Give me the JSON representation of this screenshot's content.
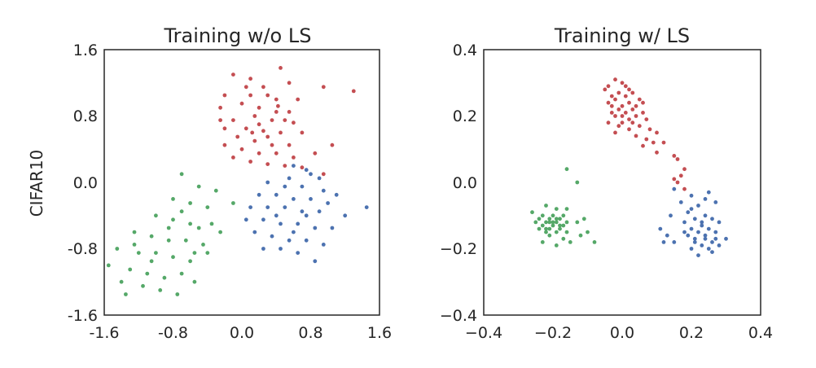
{
  "row_label": "CIFAR10",
  "colors": {
    "red": "#c44e52",
    "blue": "#4c72b0",
    "green": "#55a868",
    "axis": "#262626"
  },
  "chart_data": [
    {
      "type": "scatter",
      "title": "Training w/o LS",
      "xlabel": "",
      "ylabel": "CIFAR10",
      "xlim": [
        -1.6,
        1.6
      ],
      "ylim": [
        -1.6,
        1.6
      ],
      "xticks": [
        "-1.6",
        "-0.8",
        "0.0",
        "0.8",
        "1.6"
      ],
      "yticks": [
        "-1.6",
        "-0.8",
        "0.0",
        "0.8",
        "1.6"
      ],
      "grid": false,
      "series": [
        {
          "color": "#c44e52",
          "points": [
            [
              -0.1,
              1.3
            ],
            [
              0.1,
              1.25
            ],
            [
              0.45,
              1.38
            ],
            [
              0.55,
              1.2
            ],
            [
              0.95,
              1.15
            ],
            [
              1.3,
              1.1
            ],
            [
              -0.2,
              1.05
            ],
            [
              0.1,
              1.05
            ],
            [
              0.3,
              1.05
            ],
            [
              0.65,
              1.0
            ],
            [
              -0.25,
              0.9
            ],
            [
              0.0,
              0.95
            ],
            [
              0.2,
              0.9
            ],
            [
              0.4,
              0.85
            ],
            [
              0.55,
              0.85
            ],
            [
              -0.1,
              0.75
            ],
            [
              0.15,
              0.8
            ],
            [
              0.35,
              0.75
            ],
            [
              0.6,
              0.72
            ],
            [
              -0.2,
              0.65
            ],
            [
              0.05,
              0.65
            ],
            [
              0.25,
              0.62
            ],
            [
              0.45,
              0.6
            ],
            [
              0.7,
              0.6
            ],
            [
              -0.05,
              0.55
            ],
            [
              0.15,
              0.5
            ],
            [
              0.35,
              0.45
            ],
            [
              0.55,
              0.45
            ],
            [
              -0.2,
              0.45
            ],
            [
              0.0,
              0.4
            ],
            [
              0.2,
              0.35
            ],
            [
              0.4,
              0.35
            ],
            [
              0.6,
              0.3
            ],
            [
              0.85,
              0.35
            ],
            [
              0.1,
              0.25
            ],
            [
              0.3,
              0.22
            ],
            [
              0.5,
              0.2
            ],
            [
              0.7,
              0.18
            ],
            [
              0.95,
              0.1
            ],
            [
              1.05,
              0.45
            ],
            [
              -0.25,
              0.75
            ],
            [
              0.25,
              1.15
            ],
            [
              0.05,
              1.15
            ],
            [
              0.4,
              1.0
            ],
            [
              -0.1,
              0.3
            ],
            [
              0.2,
              0.7
            ],
            [
              0.5,
              0.75
            ],
            [
              0.3,
              0.55
            ],
            [
              0.12,
              0.6
            ],
            [
              0.42,
              0.92
            ]
          ]
        },
        {
          "color": "#4c72b0",
          "points": [
            [
              0.6,
              0.2
            ],
            [
              0.75,
              0.15
            ],
            [
              0.9,
              0.05
            ],
            [
              0.3,
              0.0
            ],
            [
              0.5,
              -0.05
            ],
            [
              0.7,
              -0.05
            ],
            [
              0.95,
              -0.1
            ],
            [
              1.1,
              -0.15
            ],
            [
              0.2,
              -0.15
            ],
            [
              0.4,
              -0.15
            ],
            [
              0.6,
              -0.2
            ],
            [
              0.8,
              -0.2
            ],
            [
              1.0,
              -0.25
            ],
            [
              0.1,
              -0.3
            ],
            [
              0.3,
              -0.3
            ],
            [
              0.5,
              -0.3
            ],
            [
              0.7,
              -0.35
            ],
            [
              0.9,
              -0.35
            ],
            [
              1.2,
              -0.4
            ],
            [
              1.45,
              -0.3
            ],
            [
              0.05,
              -0.45
            ],
            [
              0.25,
              -0.45
            ],
            [
              0.45,
              -0.5
            ],
            [
              0.65,
              -0.5
            ],
            [
              0.85,
              -0.55
            ],
            [
              1.05,
              -0.55
            ],
            [
              0.15,
              -0.6
            ],
            [
              0.35,
              -0.65
            ],
            [
              0.55,
              -0.7
            ],
            [
              0.75,
              -0.7
            ],
            [
              0.95,
              -0.75
            ],
            [
              0.25,
              -0.8
            ],
            [
              0.45,
              -0.8
            ],
            [
              0.65,
              -0.85
            ],
            [
              0.85,
              -0.95
            ],
            [
              0.55,
              0.05
            ],
            [
              0.8,
              0.1
            ],
            [
              0.4,
              -0.4
            ],
            [
              0.6,
              -0.6
            ],
            [
              0.75,
              -0.4
            ]
          ]
        },
        {
          "color": "#55a868",
          "points": [
            [
              -0.7,
              0.1
            ],
            [
              -0.5,
              -0.05
            ],
            [
              -0.3,
              -0.1
            ],
            [
              -0.8,
              -0.2
            ],
            [
              -0.6,
              -0.25
            ],
            [
              -0.4,
              -0.3
            ],
            [
              -0.1,
              -0.25
            ],
            [
              -1.0,
              -0.4
            ],
            [
              -0.8,
              -0.45
            ],
            [
              -0.6,
              -0.5
            ],
            [
              -0.35,
              -0.5
            ],
            [
              -1.25,
              -0.6
            ],
            [
              -1.05,
              -0.65
            ],
            [
              -0.85,
              -0.7
            ],
            [
              -0.65,
              -0.7
            ],
            [
              -0.45,
              -0.75
            ],
            [
              -1.45,
              -0.8
            ],
            [
              -1.2,
              -0.85
            ],
            [
              -1.0,
              -0.85
            ],
            [
              -0.8,
              -0.9
            ],
            [
              -0.6,
              -0.95
            ],
            [
              -0.4,
              -0.85
            ],
            [
              -1.55,
              -1.0
            ],
            [
              -1.3,
              -1.05
            ],
            [
              -1.1,
              -1.1
            ],
            [
              -0.9,
              -1.15
            ],
            [
              -0.7,
              -1.1
            ],
            [
              -0.55,
              -1.2
            ],
            [
              -1.4,
              -1.2
            ],
            [
              -1.15,
              -1.25
            ],
            [
              -0.95,
              -1.3
            ],
            [
              -0.75,
              -1.35
            ],
            [
              -1.35,
              -1.35
            ],
            [
              -0.5,
              -0.55
            ],
            [
              -0.25,
              -0.6
            ],
            [
              -0.7,
              -0.35
            ],
            [
              -1.05,
              -0.95
            ],
            [
              -0.85,
              -0.55
            ],
            [
              -0.55,
              -0.85
            ],
            [
              -1.25,
              -0.75
            ]
          ]
        }
      ]
    },
    {
      "type": "scatter",
      "title": "Training w/ LS",
      "xlabel": "",
      "ylabel": "",
      "xlim": [
        -0.4,
        0.4
      ],
      "ylim": [
        -0.4,
        0.4
      ],
      "xticks": [
        "−0.4",
        "−0.2",
        "0.0",
        "0.2",
        "0.4"
      ],
      "yticks": [
        "−0.4",
        "−0.2",
        "0.0",
        "0.2",
        "0.4"
      ],
      "grid": false,
      "series": [
        {
          "color": "#c44e52",
          "points": [
            [
              -0.02,
              0.31
            ],
            [
              0.0,
              0.3
            ],
            [
              -0.04,
              0.29
            ],
            [
              0.02,
              0.28
            ],
            [
              -0.01,
              0.27
            ],
            [
              0.03,
              0.27
            ],
            [
              -0.03,
              0.26
            ],
            [
              0.01,
              0.26
            ],
            [
              0.05,
              0.25
            ],
            [
              -0.02,
              0.25
            ],
            [
              0.02,
              0.24
            ],
            [
              -0.04,
              0.24
            ],
            [
              0.0,
              0.23
            ],
            [
              0.04,
              0.23
            ],
            [
              -0.01,
              0.22
            ],
            [
              0.03,
              0.22
            ],
            [
              0.06,
              0.21
            ],
            [
              -0.03,
              0.21
            ],
            [
              0.01,
              0.21
            ],
            [
              0.04,
              0.2
            ],
            [
              -0.02,
              0.2
            ],
            [
              0.02,
              0.19
            ],
            [
              0.07,
              0.19
            ],
            [
              -0.04,
              0.18
            ],
            [
              0.0,
              0.18
            ],
            [
              0.05,
              0.17
            ],
            [
              0.02,
              0.16
            ],
            [
              -0.02,
              0.15
            ],
            [
              0.08,
              0.16
            ],
            [
              0.04,
              0.14
            ],
            [
              0.1,
              0.15
            ],
            [
              0.07,
              0.13
            ],
            [
              0.12,
              0.12
            ],
            [
              0.06,
              0.11
            ],
            [
              0.1,
              0.09
            ],
            [
              0.15,
              0.08
            ],
            [
              0.16,
              0.07
            ],
            [
              0.18,
              0.04
            ],
            [
              0.17,
              0.02
            ],
            [
              0.16,
              0.0
            ],
            [
              0.18,
              -0.02
            ],
            [
              0.15,
              0.01
            ],
            [
              -0.05,
              0.28
            ],
            [
              0.01,
              0.29
            ],
            [
              -0.03,
              0.23
            ],
            [
              0.03,
              0.18
            ],
            [
              0.06,
              0.24
            ],
            [
              0.0,
              0.2
            ],
            [
              -0.01,
              0.17
            ],
            [
              0.09,
              0.12
            ]
          ]
        },
        {
          "color": "#4c72b0",
          "points": [
            [
              0.15,
              -0.02
            ],
            [
              0.2,
              -0.04
            ],
            [
              0.25,
              -0.03
            ],
            [
              0.17,
              -0.06
            ],
            [
              0.22,
              -0.07
            ],
            [
              0.27,
              -0.06
            ],
            [
              0.19,
              -0.09
            ],
            [
              0.24,
              -0.1
            ],
            [
              0.21,
              -0.11
            ],
            [
              0.26,
              -0.11
            ],
            [
              0.18,
              -0.12
            ],
            [
              0.23,
              -0.13
            ],
            [
              0.2,
              -0.14
            ],
            [
              0.25,
              -0.14
            ],
            [
              0.22,
              -0.15
            ],
            [
              0.27,
              -0.15
            ],
            [
              0.19,
              -0.16
            ],
            [
              0.24,
              -0.17
            ],
            [
              0.21,
              -0.18
            ],
            [
              0.26,
              -0.18
            ],
            [
              0.23,
              -0.19
            ],
            [
              0.28,
              -0.19
            ],
            [
              0.2,
              -0.2
            ],
            [
              0.25,
              -0.2
            ],
            [
              0.3,
              -0.17
            ],
            [
              0.13,
              -0.16
            ],
            [
              0.15,
              -0.18
            ],
            [
              0.11,
              -0.14
            ],
            [
              0.14,
              -0.1
            ],
            [
              0.22,
              -0.22
            ],
            [
              0.26,
              -0.21
            ],
            [
              0.23,
              -0.12
            ],
            [
              0.2,
              -0.08
            ],
            [
              0.24,
              -0.05
            ],
            [
              0.28,
              -0.12
            ],
            [
              0.18,
              -0.15
            ],
            [
              0.21,
              -0.17
            ],
            [
              0.24,
              -0.16
            ],
            [
              0.27,
              -0.17
            ],
            [
              0.12,
              -0.18
            ]
          ]
        },
        {
          "color": "#55a868",
          "points": [
            [
              -0.16,
              0.04
            ],
            [
              -0.13,
              0.0
            ],
            [
              -0.22,
              -0.07
            ],
            [
              -0.19,
              -0.08
            ],
            [
              -0.16,
              -0.08
            ],
            [
              -0.26,
              -0.09
            ],
            [
              -0.23,
              -0.1
            ],
            [
              -0.2,
              -0.1
            ],
            [
              -0.17,
              -0.1
            ],
            [
              -0.24,
              -0.11
            ],
            [
              -0.21,
              -0.11
            ],
            [
              -0.18,
              -0.11
            ],
            [
              -0.25,
              -0.12
            ],
            [
              -0.22,
              -0.12
            ],
            [
              -0.19,
              -0.12
            ],
            [
              -0.16,
              -0.12
            ],
            [
              -0.23,
              -0.13
            ],
            [
              -0.2,
              -0.13
            ],
            [
              -0.17,
              -0.13
            ],
            [
              -0.24,
              -0.14
            ],
            [
              -0.21,
              -0.14
            ],
            [
              -0.18,
              -0.14
            ],
            [
              -0.22,
              -0.15
            ],
            [
              -0.19,
              -0.15
            ],
            [
              -0.16,
              -0.15
            ],
            [
              -0.21,
              -0.16
            ],
            [
              -0.17,
              -0.17
            ],
            [
              -0.23,
              -0.18
            ],
            [
              -0.19,
              -0.19
            ],
            [
              -0.15,
              -0.18
            ],
            [
              -0.12,
              -0.16
            ],
            [
              -0.1,
              -0.15
            ],
            [
              -0.08,
              -0.18
            ],
            [
              -0.13,
              -0.12
            ],
            [
              -0.11,
              -0.11
            ],
            [
              -0.2,
              -0.12
            ],
            [
              -0.21,
              -0.12
            ],
            [
              -0.18,
              -0.13
            ],
            [
              -0.22,
              -0.14
            ],
            [
              -0.19,
              -0.11
            ]
          ]
        }
      ]
    }
  ]
}
